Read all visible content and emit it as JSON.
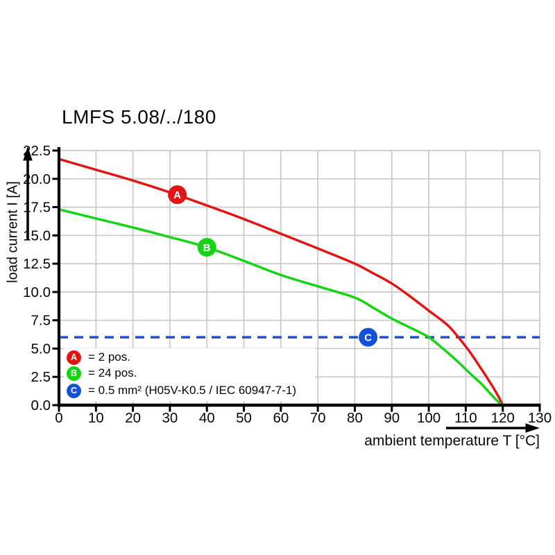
{
  "title": "LMFS 5.08/../180",
  "colors": {
    "series_a_red": "#e31414",
    "series_b_green": "#14d414",
    "limit_c_blue": "#1550d8",
    "grid": "#c9c9c9",
    "axis": "#000000",
    "text": "#060606"
  },
  "y_axis": {
    "label": "load current I [A]",
    "ticks": [
      "0.0",
      "2.5",
      "5.0",
      "7.5",
      "10.0",
      "12.5",
      "15.0",
      "17.5",
      "20.0",
      "22.5"
    ]
  },
  "x_axis": {
    "label": "ambient temperature T [°C]",
    "ticks": [
      "0",
      "10",
      "20",
      "30",
      "40",
      "50",
      "60",
      "70",
      "80",
      "90",
      "100",
      "110",
      "120",
      "130"
    ]
  },
  "legend": {
    "items": [
      {
        "letter": "A",
        "label": "= 2 pos.",
        "color": "#e31414"
      },
      {
        "letter": "B",
        "label": "= 24 pos.",
        "color": "#14d414"
      },
      {
        "letter": "C",
        "label": "= 0.5 mm² (H05V-K0.5 / IEC 60947-7-1)",
        "color": "#1550d8"
      }
    ]
  },
  "chart_data": {
    "type": "line",
    "title": "LMFS 5.08/../180",
    "xlabel": "ambient temperature T [°C]",
    "ylabel": "load current I [A]",
    "xlim": [
      0,
      130
    ],
    "ylim": [
      0,
      22.5
    ],
    "x_ticks": [
      0,
      10,
      20,
      30,
      40,
      50,
      60,
      70,
      80,
      90,
      100,
      110,
      120,
      130
    ],
    "y_ticks": [
      0,
      2.5,
      5,
      7.5,
      10,
      12.5,
      15,
      17.5,
      20,
      22.5
    ],
    "grid": true,
    "legend_position": "inside-bottom-left",
    "series": [
      {
        "name": "A",
        "description": "2 pos.",
        "color": "#e31414",
        "marker_at": [
          32,
          18.6
        ],
        "points": [
          [
            0,
            21.75
          ],
          [
            10,
            20.8
          ],
          [
            20,
            19.85
          ],
          [
            30,
            18.8
          ],
          [
            40,
            17.65
          ],
          [
            50,
            16.45
          ],
          [
            60,
            15.15
          ],
          [
            70,
            13.85
          ],
          [
            80,
            12.5
          ],
          [
            85,
            11.65
          ],
          [
            90,
            10.75
          ],
          [
            95,
            9.6
          ],
          [
            100,
            8.35
          ],
          [
            105,
            7.1
          ],
          [
            108,
            6.0
          ],
          [
            111,
            4.75
          ],
          [
            114,
            3.3
          ],
          [
            116,
            2.3
          ],
          [
            118,
            1.25
          ],
          [
            119.5,
            0.35
          ],
          [
            120,
            0
          ]
        ]
      },
      {
        "name": "B",
        "description": "24 pos.",
        "color": "#14d414",
        "marker_at": [
          40,
          13.95
        ],
        "points": [
          [
            0,
            17.3
          ],
          [
            10,
            16.5
          ],
          [
            20,
            15.7
          ],
          [
            30,
            14.85
          ],
          [
            40,
            13.95
          ],
          [
            50,
            12.75
          ],
          [
            60,
            11.5
          ],
          [
            70,
            10.5
          ],
          [
            80,
            9.5
          ],
          [
            85,
            8.6
          ],
          [
            90,
            7.65
          ],
          [
            95,
            6.85
          ],
          [
            100,
            6.0
          ],
          [
            104,
            4.95
          ],
          [
            108,
            3.8
          ],
          [
            111,
            2.85
          ],
          [
            114,
            1.95
          ],
          [
            116,
            1.25
          ],
          [
            118,
            0.55
          ],
          [
            119.5,
            0.1
          ],
          [
            120,
            0
          ]
        ]
      }
    ],
    "limit_line": {
      "name": "C",
      "description": "0.5 mm² (H05V-K0.5 / IEC 60947-7-1)",
      "color": "#1550d8",
      "style": "dashed",
      "y": 6.0,
      "marker_at": [
        83.6,
        6.0
      ]
    }
  }
}
